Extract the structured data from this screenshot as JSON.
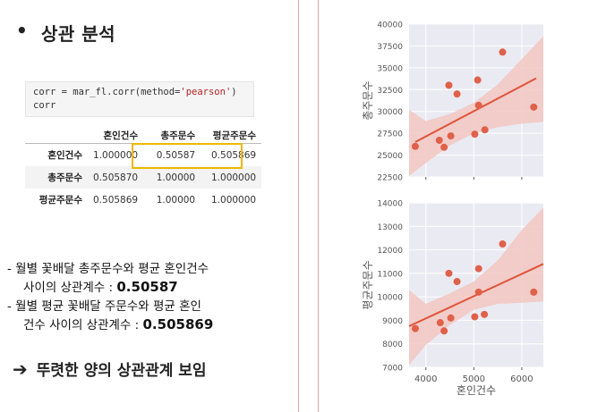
{
  "header": {
    "bullet": "•",
    "title": "상관 분석"
  },
  "code": {
    "line1_a": "corr = mar_fl.corr(method=",
    "line1_str": "'pearson'",
    "line1_b": ")",
    "line2": "corr"
  },
  "corr_table": {
    "columns": [
      "혼인건수",
      "총주문수",
      "평균주문수"
    ],
    "rows": [
      {
        "label": "혼인건수",
        "values": [
          "1.000000",
          "0.50587",
          "0.505869"
        ]
      },
      {
        "label": "총주문수",
        "values": [
          "0.505870",
          "1.00000",
          "1.000000"
        ]
      },
      {
        "label": "평균주문수",
        "values": [
          "0.505869",
          "1.00000",
          "1.000000"
        ]
      }
    ]
  },
  "notes": {
    "n1_line1": "- 월별 꽃배달 총주문수와 평균 혼인건수",
    "n1_line2": "사이의 상관계수 : ",
    "n1_value": "0.50587",
    "n2_line1": "- 월별 평균 꽃배달 주문수와 평균 혼인",
    "n2_line2": "건수 사이의 상관계수 : ",
    "n2_value": "0.505869"
  },
  "conclusion": {
    "arrow": "➔",
    "text": "뚜렷한 양의 상관관계 보임"
  },
  "colors": {
    "point": "#e0604a",
    "line": "#e0533a",
    "band": "#f2c7c1",
    "plot_bg": "#eaeaf2",
    "highlight": "#f0b800",
    "divider": "#e9a0a8"
  },
  "chart_data": [
    {
      "type": "scatter",
      "xlabel": "",
      "ylabel": "총주문수",
      "ylim": [
        22500,
        40000
      ],
      "yticks": [
        22500,
        25000,
        27500,
        30000,
        32500,
        35000,
        37500,
        40000
      ],
      "ytick_labels": [
        "22500",
        "25000",
        "27500",
        "30000",
        "32500",
        "35000",
        "37500",
        "40000"
      ],
      "xlim": [
        3650,
        6450
      ],
      "xticks": [
        4000,
        5000,
        6000
      ],
      "show_xtick_labels": false,
      "points": [
        [
          3780,
          26000
        ],
        [
          4280,
          26700
        ],
        [
          4380,
          25900
        ],
        [
          4480,
          33000
        ],
        [
          4520,
          27200
        ],
        [
          4650,
          32000
        ],
        [
          5020,
          27400
        ],
        [
          5080,
          33600
        ],
        [
          5100,
          30700
        ],
        [
          5230,
          27900
        ],
        [
          5600,
          36800
        ],
        [
          6250,
          30500
        ]
      ],
      "fit": {
        "x": [
          3780,
          6300
        ],
        "y": [
          26500,
          33800
        ]
      },
      "band": {
        "x": [
          3650,
          4000,
          4500,
          5000,
          5500,
          6000,
          6450
        ],
        "upper": [
          30200,
          28900,
          29700,
          31000,
          33100,
          36000,
          38600
        ],
        "lower": [
          22600,
          24100,
          26100,
          27500,
          28200,
          28600,
          28800
        ]
      }
    },
    {
      "type": "scatter",
      "xlabel": "혼인건수",
      "ylabel": "평균주문수",
      "ylim": [
        7000,
        14000
      ],
      "yticks": [
        7000,
        8000,
        9000,
        10000,
        11000,
        12000,
        13000,
        14000
      ],
      "ytick_labels": [
        "7000",
        "8000",
        "9000",
        "10000",
        "11000",
        "12000",
        "13000",
        "14000"
      ],
      "xlim": [
        3650,
        6450
      ],
      "xticks": [
        4000,
        5000,
        6000
      ],
      "xtick_labels": [
        "4000",
        "5000",
        "6000"
      ],
      "show_xtick_labels": true,
      "points": [
        [
          3780,
          8650
        ],
        [
          4300,
          8900
        ],
        [
          4380,
          8550
        ],
        [
          4480,
          11000
        ],
        [
          4520,
          9100
        ],
        [
          4650,
          10650
        ],
        [
          5020,
          9150
        ],
        [
          5100,
          11200
        ],
        [
          5100,
          10200
        ],
        [
          5220,
          9250
        ],
        [
          5600,
          12250
        ],
        [
          6250,
          10200
        ]
      ],
      "fit": {
        "x": [
          3650,
          6450
        ],
        "y": [
          8750,
          11400
        ]
      },
      "band": {
        "x": [
          3650,
          4000,
          4500,
          5000,
          5500,
          6000,
          6450
        ],
        "upper": [
          10300,
          9700,
          10150,
          10650,
          11550,
          12850,
          13800
        ],
        "lower": [
          7100,
          7950,
          8800,
          9450,
          9700,
          9750,
          9800
        ]
      }
    }
  ]
}
